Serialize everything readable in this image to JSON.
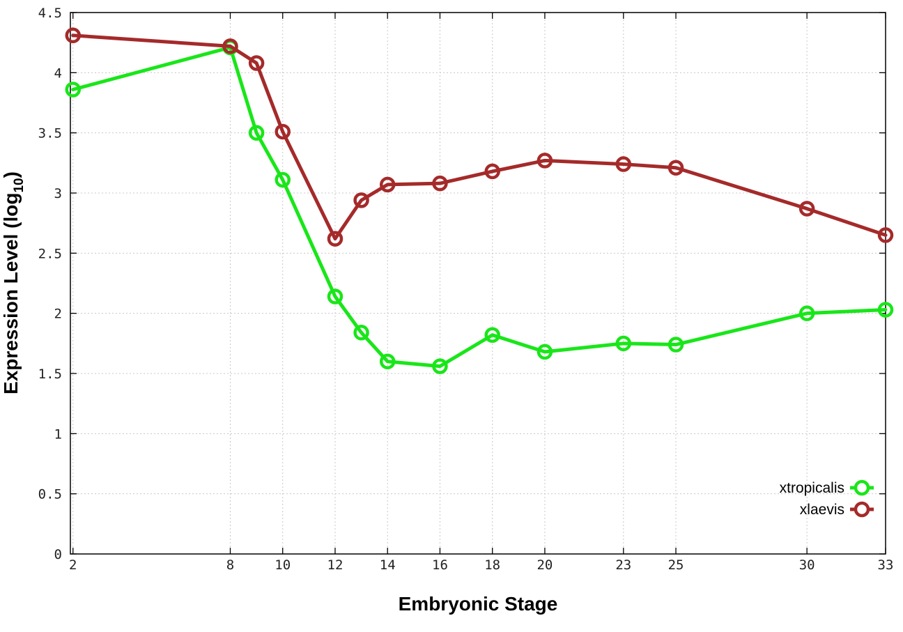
{
  "chart_data": {
    "type": "line",
    "xlabel": "Embryonic Stage",
    "ylabel_main": "Expression Level (log",
    "ylabel_sub": "10",
    "ylabel_close": ")",
    "ylim": [
      0,
      4.5
    ],
    "xlim": [
      1.9,
      33
    ],
    "grid": true,
    "legend_position": "bottom-right",
    "x_ticks": [
      2,
      8,
      10,
      12,
      14,
      16,
      18,
      20,
      23,
      25,
      30,
      33
    ],
    "y_ticks": [
      0,
      0.5,
      1,
      1.5,
      2,
      2.5,
      3,
      3.5,
      4,
      4.5
    ],
    "y_tick_labels": [
      "0",
      "0.5",
      "1",
      "1.5",
      "2",
      "2.5",
      "3",
      "3.5",
      "4",
      "4.5"
    ],
    "series": [
      {
        "name": "xtropicalis",
        "color": "#19e619",
        "x": [
          2,
          8,
          9,
          10,
          12,
          13,
          14,
          16,
          18,
          20,
          23,
          25,
          30,
          33
        ],
        "values": [
          3.86,
          4.21,
          3.5,
          3.11,
          2.14,
          1.84,
          1.6,
          1.56,
          1.82,
          1.68,
          1.75,
          1.74,
          2.0,
          2.03
        ]
      },
      {
        "name": "xlaevis",
        "color": "#a52a2a",
        "x": [
          2,
          8,
          9,
          10,
          12,
          13,
          14,
          16,
          18,
          20,
          23,
          25,
          30,
          33
        ],
        "values": [
          4.31,
          4.22,
          4.08,
          3.51,
          2.62,
          2.94,
          3.07,
          3.08,
          3.18,
          3.27,
          3.24,
          3.21,
          2.87,
          2.65
        ]
      }
    ]
  }
}
